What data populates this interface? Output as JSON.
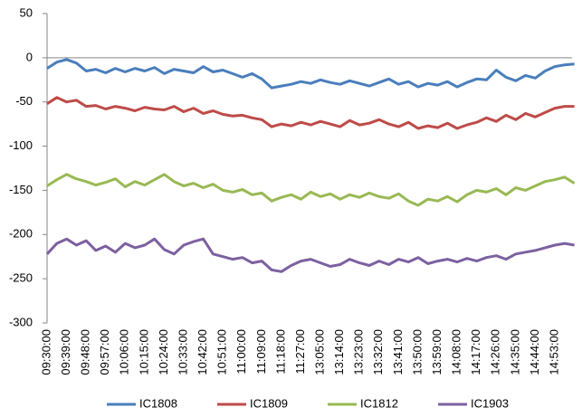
{
  "chart_data": {
    "type": "line",
    "categories": [
      "09:30:00",
      null,
      "09:39:00",
      null,
      "09:48:00",
      null,
      "09:57:00",
      null,
      "10:06:00",
      null,
      "10:15:00",
      null,
      "10:24:00",
      null,
      "10:33:00",
      null,
      "10:42:00",
      null,
      "10:51:00",
      null,
      "11:00:00",
      null,
      "11:09:00",
      null,
      "11:18:00",
      null,
      "11:27:00",
      null,
      "13:05:00",
      null,
      "13:14:00",
      null,
      "13:23:00",
      null,
      "13:32:00",
      null,
      "13:41:00",
      null,
      "13:50:00",
      null,
      "13:59:00",
      null,
      "14:08:00",
      null,
      "14:17:00",
      null,
      "14:26:00",
      null,
      "14:35:00",
      null,
      "14:44:00",
      null,
      "14:53:00",
      null,
      null
    ],
    "series": [
      {
        "name": "IC1808",
        "color": "#4a7ebb",
        "values": [
          -12,
          -5,
          -2,
          -6,
          -15,
          -13,
          -17,
          -12,
          -16,
          -12,
          -15,
          -11,
          -18,
          -13,
          -15,
          -17,
          -10,
          -16,
          -14,
          -18,
          -22,
          -18,
          -24,
          -34,
          -32,
          -30,
          -27,
          -29,
          -25,
          -28,
          -30,
          -26,
          -29,
          -32,
          -28,
          -24,
          -30,
          -27,
          -33,
          -29,
          -31,
          -27,
          -33,
          -28,
          -24,
          -25,
          -14,
          -22,
          -26,
          -20,
          -23,
          -15,
          -10,
          -8,
          -7
        ]
      },
      {
        "name": "IC1809",
        "color": "#be4b48",
        "values": [
          -52,
          -45,
          -50,
          -48,
          -55,
          -54,
          -58,
          -55,
          -57,
          -60,
          -56,
          -58,
          -59,
          -55,
          -61,
          -57,
          -63,
          -60,
          -64,
          -66,
          -65,
          -68,
          -70,
          -78,
          -75,
          -77,
          -73,
          -76,
          -72,
          -75,
          -78,
          -71,
          -76,
          -74,
          -70,
          -75,
          -78,
          -73,
          -80,
          -77,
          -79,
          -74,
          -80,
          -76,
          -73,
          -68,
          -72,
          -65,
          -70,
          -63,
          -67,
          -62,
          -57,
          -55,
          -55
        ]
      },
      {
        "name": "IC1812",
        "color": "#98b954",
        "values": [
          -145,
          -138,
          -132,
          -137,
          -140,
          -144,
          -141,
          -137,
          -146,
          -140,
          -144,
          -138,
          -132,
          -140,
          -145,
          -142,
          -147,
          -143,
          -150,
          -152,
          -149,
          -155,
          -153,
          -162,
          -158,
          -155,
          -160,
          -152,
          -157,
          -154,
          -160,
          -155,
          -158,
          -153,
          -157,
          -159,
          -154,
          -162,
          -167,
          -160,
          -162,
          -157,
          -163,
          -155,
          -150,
          -152,
          -148,
          -155,
          -147,
          -150,
          -145,
          -140,
          -138,
          -135,
          -142
        ]
      },
      {
        "name": "IC1903",
        "color": "#7d60a0",
        "values": [
          -222,
          -210,
          -205,
          -212,
          -207,
          -218,
          -213,
          -220,
          -210,
          -215,
          -212,
          -205,
          -217,
          -222,
          -212,
          -208,
          -205,
          -222,
          -225,
          -228,
          -226,
          -232,
          -230,
          -240,
          -242,
          -235,
          -230,
          -228,
          -232,
          -236,
          -234,
          -228,
          -232,
          -235,
          -230,
          -234,
          -228,
          -231,
          -226,
          -233,
          -230,
          -228,
          -231,
          -227,
          -230,
          -226,
          -224,
          -228,
          -222,
          -220,
          -218,
          -215,
          -212,
          -210,
          -212
        ]
      }
    ],
    "ylim": [
      -300,
      50
    ],
    "yticks": [
      -300,
      -250,
      -200,
      -150,
      -100,
      -50,
      0,
      50
    ],
    "grid": false,
    "legend": "bottom"
  }
}
